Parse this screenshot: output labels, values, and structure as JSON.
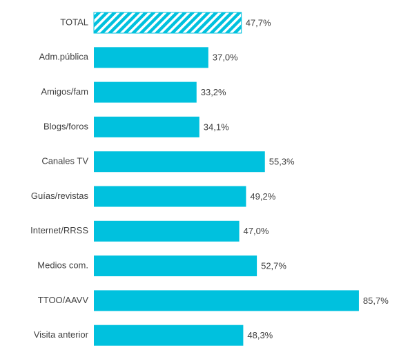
{
  "chart_data": {
    "type": "bar",
    "orientation": "horizontal",
    "categories": [
      "TOTAL",
      "Adm.pública",
      "Amigos/fam",
      "Blogs/foros",
      "Canales TV",
      "Guías/revistas",
      "Internet/RRSS",
      "Medios com.",
      "TTOO/AAVV",
      "Visita anterior"
    ],
    "values": [
      47.7,
      37.0,
      33.2,
      34.1,
      55.3,
      49.2,
      47.0,
      52.7,
      85.7,
      48.3
    ],
    "value_labels": [
      "47,7%",
      "37,0%",
      "33,2%",
      "34,1%",
      "55,3%",
      "49,2%",
      "47,0%",
      "52,7%",
      "85,7%",
      "48,3%"
    ],
    "hatched": [
      true,
      false,
      false,
      false,
      false,
      false,
      false,
      false,
      false,
      false
    ],
    "color": "#00c1de",
    "xlim": [
      0,
      100
    ]
  }
}
